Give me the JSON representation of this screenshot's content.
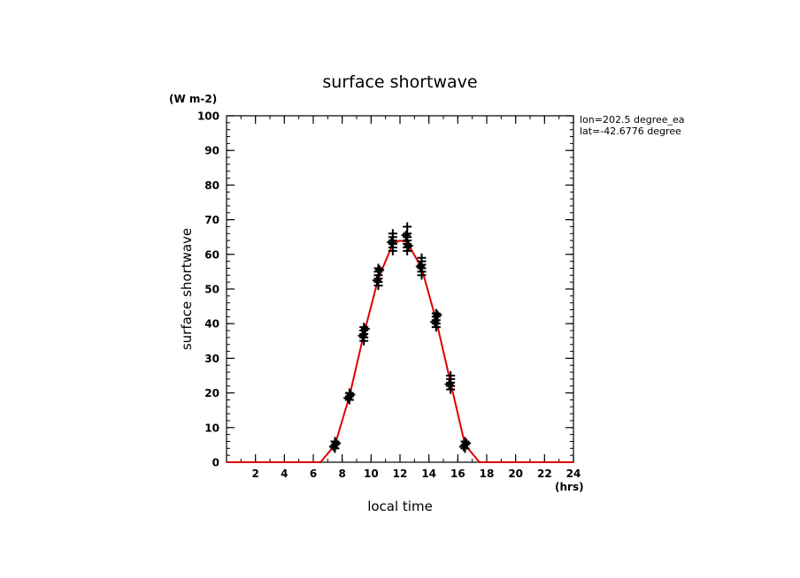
{
  "chart_data": {
    "type": "scatter",
    "title": "surface shortwave",
    "units": "(W m-2)",
    "xlabel": "local time",
    "xunits": "(hrs)",
    "ylabel": "surface shortwave",
    "xlim": [
      0,
      24
    ],
    "ylim": [
      0,
      100
    ],
    "xticks": [
      2,
      4,
      6,
      8,
      10,
      12,
      14,
      16,
      18,
      20,
      22,
      24
    ],
    "yticks": [
      0,
      10,
      20,
      30,
      40,
      50,
      60,
      70,
      80,
      90,
      100
    ],
    "grid": false,
    "annotations": [
      "lon=202.5 degree_ea",
      "lat=-42.6776 degree"
    ],
    "colors": {
      "line": "#e00000",
      "markers": "#000000",
      "axes": "#000000"
    },
    "series": [
      {
        "kind": "markers",
        "marker": "plus",
        "points": [
          [
            7.5,
            4
          ],
          [
            7.5,
            5
          ],
          [
            7.5,
            6
          ],
          [
            7.4,
            4.5
          ],
          [
            7.6,
            5.5
          ],
          [
            8.5,
            18
          ],
          [
            8.5,
            19
          ],
          [
            8.5,
            20
          ],
          [
            8.4,
            18.5
          ],
          [
            8.6,
            19.5
          ],
          [
            9.5,
            35
          ],
          [
            9.5,
            36
          ],
          [
            9.5,
            37
          ],
          [
            9.5,
            38
          ],
          [
            9.5,
            39
          ],
          [
            9.4,
            36.5
          ],
          [
            9.6,
            38.5
          ],
          [
            10.5,
            51
          ],
          [
            10.5,
            52
          ],
          [
            10.5,
            53
          ],
          [
            10.5,
            54
          ],
          [
            10.5,
            55
          ],
          [
            10.5,
            56
          ],
          [
            10.4,
            52.5
          ],
          [
            10.6,
            55.5
          ],
          [
            11.5,
            61
          ],
          [
            11.5,
            62
          ],
          [
            11.5,
            63
          ],
          [
            11.5,
            64
          ],
          [
            11.5,
            65
          ],
          [
            11.5,
            66
          ],
          [
            11.4,
            63.5
          ],
          [
            12.5,
            61
          ],
          [
            12.5,
            62
          ],
          [
            12.5,
            63
          ],
          [
            12.5,
            64
          ],
          [
            12.5,
            65
          ],
          [
            12.5,
            66
          ],
          [
            12.5,
            68
          ],
          [
            12.4,
            65.5
          ],
          [
            12.6,
            62.5
          ],
          [
            13.5,
            54
          ],
          [
            13.5,
            55
          ],
          [
            13.5,
            56
          ],
          [
            13.5,
            57
          ],
          [
            13.5,
            58
          ],
          [
            13.5,
            59
          ],
          [
            13.4,
            56.5
          ],
          [
            14.5,
            39
          ],
          [
            14.5,
            40
          ],
          [
            14.5,
            41
          ],
          [
            14.5,
            42
          ],
          [
            14.5,
            43
          ],
          [
            14.4,
            40.5
          ],
          [
            14.6,
            42.5
          ],
          [
            15.5,
            21
          ],
          [
            15.5,
            22
          ],
          [
            15.5,
            23
          ],
          [
            15.5,
            24
          ],
          [
            15.5,
            25
          ],
          [
            15.4,
            22.5
          ],
          [
            16.5,
            4
          ],
          [
            16.5,
            5
          ],
          [
            16.5,
            6
          ],
          [
            16.4,
            4.5
          ],
          [
            16.6,
            5.5
          ]
        ]
      },
      {
        "kind": "line",
        "x": [
          0,
          1,
          2,
          3,
          4,
          5,
          6,
          6.5,
          7.5,
          8.5,
          9.5,
          10.5,
          11.5,
          12.0,
          12.5,
          13.5,
          14.5,
          15.5,
          16.5,
          17.5,
          18,
          19,
          20,
          21,
          22,
          23,
          24
        ],
        "y": [
          0,
          0,
          0,
          0,
          0,
          0,
          0,
          0,
          5,
          19,
          37,
          53,
          63,
          64,
          63.5,
          56,
          41,
          23,
          5,
          0,
          0,
          0,
          0,
          0,
          0,
          0,
          0
        ]
      }
    ]
  }
}
